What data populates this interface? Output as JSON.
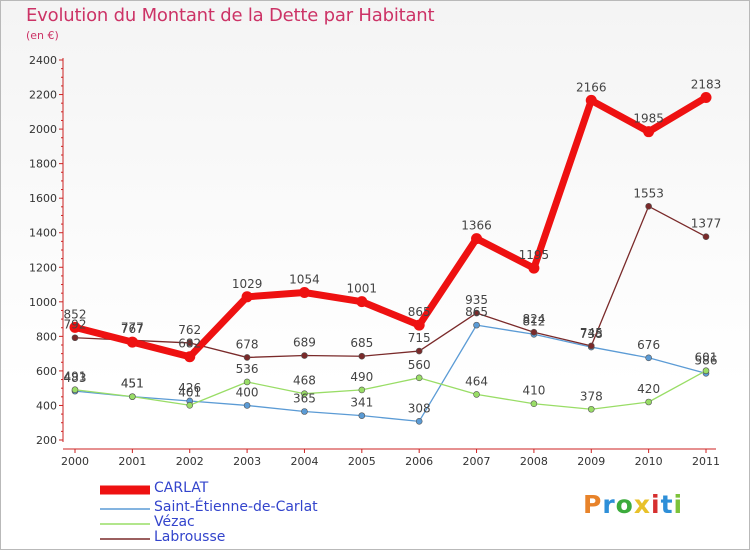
{
  "chart": {
    "title": "Evolution du Montant de la Dette par Habitant",
    "subtitle": "(en €)"
  },
  "logo": {
    "text": "Proxiti",
    "colors": [
      "#e8832a",
      "#2e8fd8",
      "#3cab3c",
      "#e8c12a",
      "#d62f2f",
      "#2e8fd8",
      "#7cc23a"
    ]
  },
  "chart_data": {
    "type": "line",
    "x": [
      "2000",
      "2001",
      "2002",
      "2003",
      "2004",
      "2005",
      "2006",
      "2007",
      "2008",
      "2009",
      "2010",
      "2011"
    ],
    "ylim": [
      200,
      2400
    ],
    "yticks": [
      200,
      400,
      600,
      800,
      1000,
      1200,
      1400,
      1600,
      1800,
      2000,
      2200,
      2400
    ],
    "grid": false,
    "legend_position": "bottom-left",
    "series": [
      {
        "name": "CARLAT",
        "color": "#ee1111",
        "values": [
          852,
          767,
          682,
          1029,
          1054,
          1001,
          865,
          1366,
          1195,
          2166,
          1985,
          2183
        ]
      },
      {
        "name": "Saint-Étienne-de-Carlat",
        "color": "#5b9bd5",
        "values": [
          483,
          451,
          426,
          400,
          365,
          341,
          308,
          865,
          812,
          738,
          676,
          586
        ]
      },
      {
        "name": "Vézac",
        "color": "#99dd66",
        "values": [
          491,
          451,
          401,
          536,
          468,
          490,
          560,
          464,
          410,
          378,
          420,
          601
        ]
      },
      {
        "name": "Labrousse",
        "color": "#7a2a2a",
        "values": [
          792,
          777,
          762,
          678,
          689,
          685,
          715,
          935,
          824,
          745,
          1553,
          1377
        ]
      }
    ]
  }
}
